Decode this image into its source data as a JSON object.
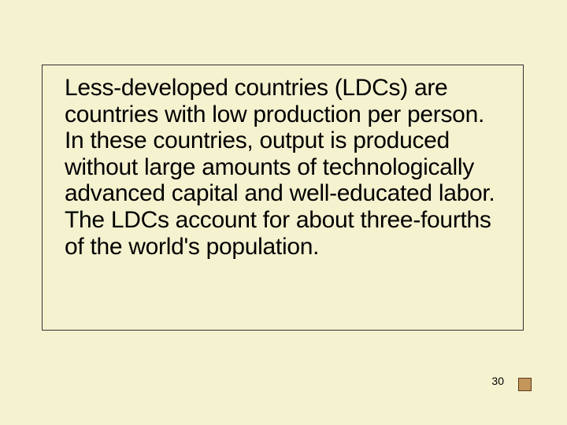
{
  "slide": {
    "body_text": "Less-developed countries (LDCs) are countries with low production per person. In these countries, output is produced without large amounts of technologically advanced capital and well-educated labor. The LDCs account for about three-fourths of the world's population.",
    "page_number": "30",
    "background_color": "#f5f2d0",
    "box_border_color": "#333333",
    "text_color": "#000000",
    "marker_fill": "#c4965a",
    "marker_border": "#5a3a1a",
    "body_fontsize": 30,
    "pagenum_fontsize": 14
  }
}
